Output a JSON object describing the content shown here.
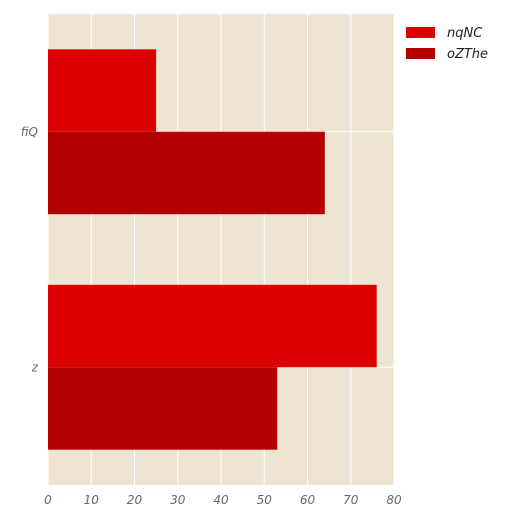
{
  "chart_data": {
    "type": "bar",
    "orientation": "horizontal",
    "categories": [
      "fiQ",
      "z"
    ],
    "series": [
      {
        "name": "nqNC",
        "values": [
          25,
          76
        ],
        "color": "#dd0000"
      },
      {
        "name": "oZThe",
        "values": [
          64,
          53
        ],
        "color": "#b30000"
      }
    ],
    "xlim": [
      0,
      80
    ],
    "xticks": [
      0,
      10,
      20,
      30,
      40,
      50,
      60,
      70,
      80
    ],
    "title": "",
    "xlabel": "",
    "ylabel": "",
    "grid": true,
    "legend_position": "outside-top-right",
    "colors": {
      "plot_background": "#ede5d2",
      "grid": "#ffffff"
    }
  }
}
